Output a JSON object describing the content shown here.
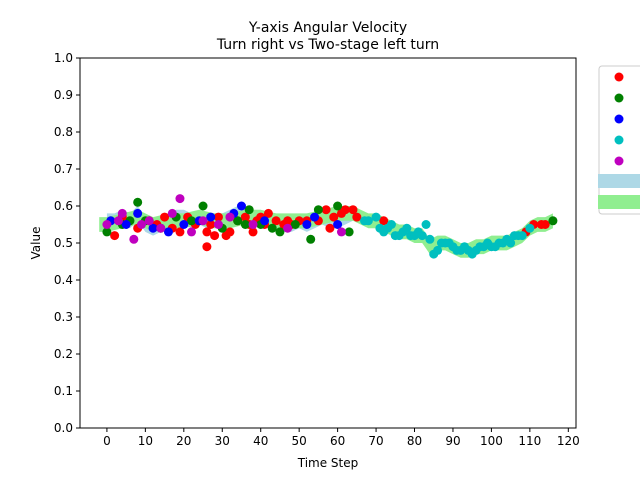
{
  "chart_data": {
    "type": "scatter",
    "title": "Y-axis Angular Velocity",
    "subtitle": "Turn right vs Two-stage left turn",
    "xlabel": "Time Step",
    "ylabel": "Value",
    "xlim": [
      -7,
      122
    ],
    "ylim": [
      0,
      1
    ],
    "xticks": [
      "0",
      "10",
      "20",
      "30",
      "40",
      "50",
      "60",
      "70",
      "80",
      "90",
      "100",
      "110",
      "120"
    ],
    "yticks": [
      "0.0",
      "0.1",
      "0.2",
      "0.3",
      "0.4",
      "0.5",
      "0.6",
      "0.7",
      "0.8",
      "0.9",
      "1.0"
    ],
    "legend_position": "outside-right",
    "bands": [
      {
        "color": "#add8e6",
        "x": [
          0,
          2,
          4,
          6,
          8,
          10,
          12,
          14,
          16,
          18,
          20,
          22,
          24,
          26,
          28,
          30,
          32,
          34,
          36,
          38,
          40,
          42,
          44,
          46,
          48,
          50,
          52,
          54,
          56,
          58,
          60,
          62,
          64
        ],
        "y": [
          0.56,
          0.56,
          0.57,
          0.56,
          0.58,
          0.55,
          0.54,
          0.55,
          0.56,
          0.57,
          0.57,
          0.56,
          0.57,
          0.56,
          0.56,
          0.56,
          0.57,
          0.58,
          0.57,
          0.56,
          0.57,
          0.56,
          0.56,
          0.55,
          0.55,
          0.56,
          0.55,
          0.56,
          0.57,
          0.56,
          0.56,
          0.57,
          0.58
        ],
        "half_width": 0.02
      },
      {
        "color": "#90ee90",
        "x": [
          -2,
          0,
          4,
          8,
          12,
          16,
          20,
          24,
          28,
          32,
          36,
          40,
          44,
          48,
          52,
          56,
          60,
          64,
          66,
          68,
          70,
          72,
          74,
          76,
          78,
          80,
          82,
          84,
          86,
          88,
          90,
          92,
          94,
          96,
          98,
          100,
          102,
          104,
          106,
          108,
          110,
          112,
          114,
          116
        ],
        "y": [
          0.55,
          0.55,
          0.56,
          0.57,
          0.55,
          0.56,
          0.56,
          0.57,
          0.56,
          0.56,
          0.57,
          0.57,
          0.56,
          0.56,
          0.56,
          0.57,
          0.58,
          0.58,
          0.57,
          0.56,
          0.56,
          0.55,
          0.54,
          0.53,
          0.53,
          0.52,
          0.52,
          0.49,
          0.5,
          0.5,
          0.49,
          0.48,
          0.48,
          0.49,
          0.49,
          0.5,
          0.5,
          0.5,
          0.51,
          0.52,
          0.54,
          0.55,
          0.55,
          0.56
        ],
        "half_width": 0.02
      }
    ],
    "series": [
      {
        "color": "#ff0000",
        "points": [
          [
            2,
            0.52
          ],
          [
            4,
            0.57
          ],
          [
            8,
            0.54
          ],
          [
            11,
            0.56
          ],
          [
            13,
            0.55
          ],
          [
            15,
            0.57
          ],
          [
            17,
            0.54
          ],
          [
            19,
            0.53
          ],
          [
            21,
            0.57
          ],
          [
            23,
            0.55
          ],
          [
            26,
            0.49
          ],
          [
            26,
            0.53
          ],
          [
            27,
            0.55
          ],
          [
            28,
            0.52
          ],
          [
            29,
            0.57
          ],
          [
            31,
            0.52
          ],
          [
            32,
            0.53
          ],
          [
            34,
            0.56
          ],
          [
            36,
            0.57
          ],
          [
            37,
            0.55
          ],
          [
            38,
            0.53
          ],
          [
            39,
            0.56
          ],
          [
            40,
            0.57
          ],
          [
            41,
            0.55
          ],
          [
            42,
            0.58
          ],
          [
            44,
            0.56
          ],
          [
            46,
            0.55
          ],
          [
            47,
            0.56
          ],
          [
            48,
            0.55
          ],
          [
            50,
            0.56
          ],
          [
            52,
            0.56
          ],
          [
            55,
            0.56
          ],
          [
            57,
            0.59
          ],
          [
            58,
            0.54
          ],
          [
            59,
            0.57
          ],
          [
            61,
            0.58
          ],
          [
            62,
            0.59
          ],
          [
            64,
            0.59
          ],
          [
            65,
            0.57
          ],
          [
            72,
            0.56
          ],
          [
            109,
            0.53
          ],
          [
            111,
            0.55
          ],
          [
            113,
            0.55
          ],
          [
            114,
            0.55
          ]
        ]
      },
      {
        "color": "#008000",
        "points": [
          [
            0,
            0.53
          ],
          [
            4,
            0.55
          ],
          [
            6,
            0.56
          ],
          [
            8,
            0.61
          ],
          [
            10,
            0.56
          ],
          [
            14,
            0.54
          ],
          [
            18,
            0.57
          ],
          [
            22,
            0.56
          ],
          [
            25,
            0.6
          ],
          [
            30,
            0.54
          ],
          [
            34,
            0.56
          ],
          [
            36,
            0.55
          ],
          [
            37,
            0.59
          ],
          [
            40,
            0.55
          ],
          [
            43,
            0.54
          ],
          [
            45,
            0.53
          ],
          [
            49,
            0.55
          ],
          [
            53,
            0.51
          ],
          [
            55,
            0.59
          ],
          [
            60,
            0.6
          ],
          [
            63,
            0.53
          ],
          [
            116,
            0.56
          ]
        ]
      },
      {
        "color": "#0000ff",
        "points": [
          [
            1,
            0.56
          ],
          [
            5,
            0.55
          ],
          [
            8,
            0.58
          ],
          [
            12,
            0.54
          ],
          [
            16,
            0.53
          ],
          [
            20,
            0.55
          ],
          [
            24,
            0.56
          ],
          [
            27,
            0.57
          ],
          [
            33,
            0.58
          ],
          [
            35,
            0.6
          ],
          [
            41,
            0.56
          ],
          [
            52,
            0.55
          ],
          [
            54,
            0.57
          ],
          [
            60,
            0.55
          ]
        ]
      },
      {
        "color": "#00bfbf",
        "points": [
          [
            67,
            0.56
          ],
          [
            68,
            0.56
          ],
          [
            70,
            0.57
          ],
          [
            71,
            0.54
          ],
          [
            72,
            0.53
          ],
          [
            73,
            0.54
          ],
          [
            74,
            0.55
          ],
          [
            75,
            0.52
          ],
          [
            76,
            0.52
          ],
          [
            77,
            0.53
          ],
          [
            78,
            0.54
          ],
          [
            79,
            0.52
          ],
          [
            80,
            0.52
          ],
          [
            81,
            0.53
          ],
          [
            82,
            0.52
          ],
          [
            83,
            0.55
          ],
          [
            84,
            0.51
          ],
          [
            85,
            0.47
          ],
          [
            86,
            0.48
          ],
          [
            87,
            0.5
          ],
          [
            88,
            0.5
          ],
          [
            89,
            0.5
          ],
          [
            90,
            0.49
          ],
          [
            91,
            0.48
          ],
          [
            92,
            0.48
          ],
          [
            93,
            0.49
          ],
          [
            94,
            0.48
          ],
          [
            95,
            0.47
          ],
          [
            96,
            0.48
          ],
          [
            97,
            0.49
          ],
          [
            98,
            0.49
          ],
          [
            99,
            0.5
          ],
          [
            100,
            0.49
          ],
          [
            101,
            0.49
          ],
          [
            102,
            0.5
          ],
          [
            103,
            0.5
          ],
          [
            104,
            0.51
          ],
          [
            105,
            0.5
          ],
          [
            106,
            0.52
          ],
          [
            107,
            0.52
          ],
          [
            108,
            0.52
          ],
          [
            110,
            0.54
          ]
        ]
      },
      {
        "color": "#bf00bf",
        "points": [
          [
            0,
            0.55
          ],
          [
            3,
            0.56
          ],
          [
            4,
            0.58
          ],
          [
            7,
            0.51
          ],
          [
            9,
            0.55
          ],
          [
            11,
            0.56
          ],
          [
            14,
            0.54
          ],
          [
            17,
            0.58
          ],
          [
            19,
            0.62
          ],
          [
            22,
            0.53
          ],
          [
            25,
            0.56
          ],
          [
            29,
            0.55
          ],
          [
            32,
            0.57
          ],
          [
            38,
            0.55
          ],
          [
            47,
            0.54
          ],
          [
            61,
            0.53
          ]
        ]
      }
    ]
  }
}
